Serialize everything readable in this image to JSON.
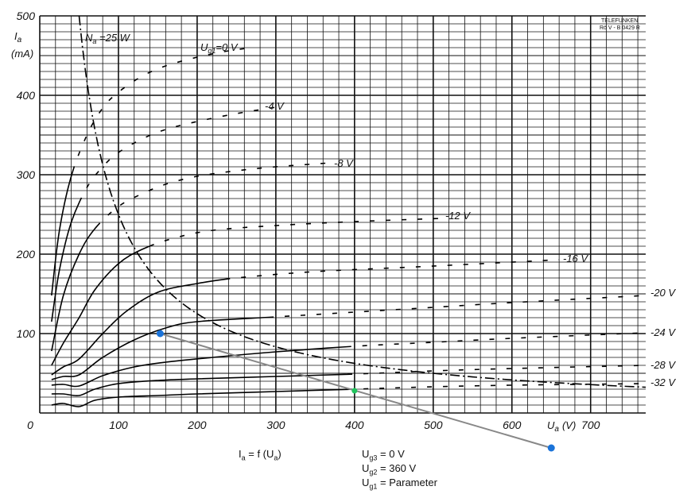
{
  "chart_data": {
    "type": "line",
    "brand": [
      "TELEFUNKEN",
      "Rö V - B 0429 R"
    ],
    "ylabel": "I",
    "ylabel_sub": "a",
    "yunit": "(mA)",
    "xlabel": "U",
    "xlabel_sub": "a",
    "xunit": "(V)",
    "xlim": [
      0,
      770
    ],
    "ylim": [
      0,
      500
    ],
    "x_ticks": [
      "0",
      "100",
      "200",
      "300",
      "400",
      "500",
      "600",
      "700"
    ],
    "y_ticks": [
      "100",
      "200",
      "300",
      "400",
      "500"
    ],
    "grid": true,
    "power_curve": {
      "label": "N",
      "label_sub": "a",
      "label_rest": " =25 W",
      "watts": 25
    },
    "series": [
      {
        "name": "Ug1=0 V",
        "label": "0 V",
        "x": [
          15,
          25,
          40,
          60,
          80,
          100,
          130,
          160,
          200,
          240,
          270
        ],
        "y": [
          148,
          230,
          298,
          350,
          384,
          404,
          424,
          437,
          448,
          456,
          460
        ]
      },
      {
        "name": "-4 V",
        "label": "-4 V",
        "x": [
          15,
          25,
          40,
          60,
          80,
          100,
          130,
          160,
          200,
          250,
          300
        ],
        "y": [
          115,
          180,
          240,
          284,
          310,
          328,
          345,
          357,
          367,
          377,
          385
        ]
      },
      {
        "name": "-8 V",
        "label": "-8 V",
        "x": [
          15,
          30,
          50,
          70,
          100,
          130,
          160,
          200,
          250,
          300,
          370
        ],
        "y": [
          78,
          148,
          200,
          232,
          260,
          276,
          288,
          298,
          305,
          310,
          315
        ]
      },
      {
        "name": "-12 V",
        "label": "-12 V",
        "x": [
          15,
          30,
          50,
          70,
          100,
          130,
          170,
          220,
          300,
          400,
          510
        ],
        "y": [
          60,
          88,
          120,
          155,
          188,
          206,
          220,
          230,
          236,
          241,
          245
        ]
      },
      {
        "name": "-16 V",
        "label": "-16 V",
        "x": [
          15,
          30,
          50,
          80,
          110,
          150,
          200,
          250,
          350,
          500,
          660
        ],
        "y": [
          48,
          58,
          68,
          100,
          128,
          152,
          163,
          170,
          178,
          185,
          193
        ]
      },
      {
        "name": "-20 V",
        "label": "-20 V",
        "x": [
          15,
          30,
          50,
          80,
          120,
          160,
          200,
          300,
          400,
          500,
          600,
          770
        ],
        "y": [
          42,
          46,
          48,
          70,
          92,
          107,
          115,
          121,
          127,
          133,
          139,
          148
        ]
      },
      {
        "name": "-24 V",
        "label": "-24 V",
        "x": [
          15,
          30,
          50,
          80,
          120,
          160,
          220,
          300,
          400,
          500,
          600,
          770
        ],
        "y": [
          35,
          36,
          34,
          47,
          58,
          64,
          70,
          77,
          84,
          89,
          94,
          101
        ]
      },
      {
        "name": "-28 V",
        "label": "-28 V",
        "x": [
          15,
          30,
          50,
          70,
          100,
          150,
          200,
          300,
          400,
          500,
          600,
          770
        ],
        "y": [
          24,
          24,
          22,
          30,
          37,
          41,
          43,
          46,
          49,
          53,
          56,
          60
        ]
      },
      {
        "name": "-32 V",
        "label": "-32 V",
        "x": [
          15,
          30,
          50,
          70,
          100,
          150,
          200,
          300,
          400,
          500,
          600,
          770
        ],
        "y": [
          10,
          12,
          8,
          16,
          20,
          22,
          24,
          27,
          30,
          33,
          35,
          37
        ]
      }
    ],
    "load_line": {
      "start": [
        153,
        100
      ],
      "end": [
        650,
        -44
      ],
      "marker": [
        400,
        28
      ],
      "endpoint_color": "#1a73d9",
      "marker_color": "#22c55e",
      "line_color": "#888888"
    }
  },
  "info": {
    "formula": {
      "lhs": "I",
      "lhs_sub": "a",
      "rest": " = f (U",
      "arg_sub": "a",
      "close": ")"
    },
    "conditions": [
      {
        "sym": "U",
        "sub": "g3",
        "value": " = 0 V"
      },
      {
        "sym": "U",
        "sub": "g2",
        "value": " = 360 V"
      },
      {
        "sym": "U",
        "sub": "g1",
        "value": " = Parameter"
      }
    ]
  }
}
